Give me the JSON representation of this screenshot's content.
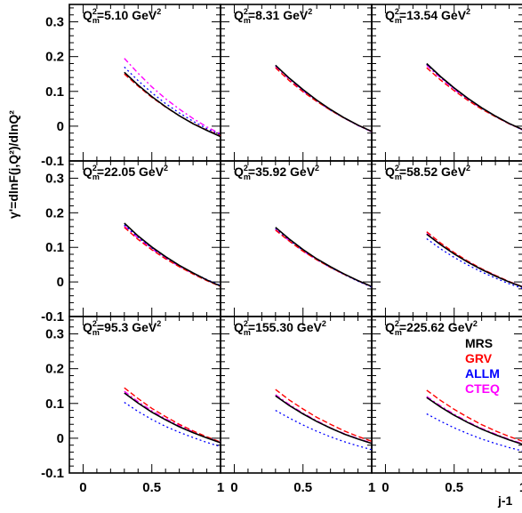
{
  "chart_data": {
    "type": "line",
    "layout": {
      "rows": 3,
      "cols": 3
    },
    "ylabel": "γ'=dlnF(j,Q²)/dlnQ²",
    "xlabel": "j-1",
    "xlim": [
      -0.1,
      1.0
    ],
    "ylim": [
      -0.1,
      0.35
    ],
    "xticks": [
      "0",
      "0.5",
      "1"
    ],
    "yticks": [
      "-0.1",
      "0",
      "0.1",
      "0.2",
      "0.3"
    ],
    "legend": {
      "position": "inside bottom-right panel, top-right",
      "entries": [
        {
          "name": "MRS",
          "color": "#000000"
        },
        {
          "name": "GRV",
          "color": "#ff0000"
        },
        {
          "name": "ALLM",
          "color": "#0000ff"
        },
        {
          "name": "CTEQ",
          "color": "#ff00ff"
        }
      ]
    },
    "x": [
      0.3,
      0.4,
      0.5,
      0.6,
      0.7,
      0.8,
      0.9,
      1.0
    ],
    "panels": [
      {
        "q2": "5.10",
        "unit": "GeV",
        "series": [
          {
            "name": "MRS",
            "values": [
              0.155,
              0.118,
              0.085,
              0.056,
              0.03,
              0.007,
              -0.012,
              -0.03
            ]
          },
          {
            "name": "GRV",
            "values": [
              0.15,
              0.115,
              0.083,
              0.055,
              0.03,
              0.008,
              -0.011,
              -0.028
            ]
          },
          {
            "name": "ALLM",
            "values": [
              0.17,
              0.131,
              0.096,
              0.065,
              0.038,
              0.014,
              -0.007,
              -0.025
            ]
          },
          {
            "name": "CTEQ",
            "values": [
              0.195,
              0.152,
              0.113,
              0.079,
              0.049,
              0.022,
              -0.002,
              -0.022
            ]
          }
        ]
      },
      {
        "q2": "8.31",
        "unit": "GeV",
        "series": [
          {
            "name": "MRS",
            "values": [
              0.175,
              0.138,
              0.105,
              0.075,
              0.048,
              0.024,
              0.003,
              -0.015
            ]
          },
          {
            "name": "GRV",
            "values": [
              0.168,
              0.131,
              0.099,
              0.071,
              0.046,
              0.023,
              0.003,
              -0.015
            ]
          },
          {
            "name": "ALLM",
            "values": [
              0.175,
              0.137,
              0.103,
              0.073,
              0.046,
              0.023,
              0.002,
              -0.016
            ]
          },
          {
            "name": "CTEQ",
            "values": [
              0.172,
              0.135,
              0.102,
              0.072,
              0.046,
              0.023,
              0.002,
              -0.016
            ]
          }
        ]
      },
      {
        "q2": "13.54",
        "unit": "GeV",
        "series": [
          {
            "name": "MRS",
            "values": [
              0.18,
              0.143,
              0.11,
              0.08,
              0.053,
              0.029,
              0.008,
              -0.01
            ]
          },
          {
            "name": "GRV",
            "values": [
              0.168,
              0.133,
              0.102,
              0.074,
              0.049,
              0.027,
              0.007,
              -0.01
            ]
          },
          {
            "name": "ALLM",
            "values": [
              0.178,
              0.141,
              0.108,
              0.078,
              0.051,
              0.028,
              0.007,
              -0.011
            ]
          },
          {
            "name": "CTEQ",
            "values": [
              0.175,
              0.139,
              0.106,
              0.077,
              0.051,
              0.028,
              0.007,
              -0.011
            ]
          }
        ]
      },
      {
        "q2": "22.05",
        "unit": "GeV",
        "series": [
          {
            "name": "MRS",
            "values": [
              0.17,
              0.133,
              0.101,
              0.073,
              0.048,
              0.026,
              0.006,
              -0.012
            ]
          },
          {
            "name": "GRV",
            "values": [
              0.158,
              0.123,
              0.093,
              0.067,
              0.044,
              0.023,
              0.004,
              -0.013
            ]
          },
          {
            "name": "ALLM",
            "values": [
              0.165,
              0.129,
              0.098,
              0.071,
              0.047,
              0.026,
              0.007,
              -0.01
            ]
          },
          {
            "name": "CTEQ",
            "values": [
              0.162,
              0.127,
              0.096,
              0.069,
              0.045,
              0.024,
              0.005,
              -0.012
            ]
          }
        ]
      },
      {
        "q2": "35.92",
        "unit": "GeV",
        "series": [
          {
            "name": "MRS",
            "values": [
              0.158,
              0.124,
              0.094,
              0.067,
              0.044,
              0.023,
              0.004,
              -0.013
            ]
          },
          {
            "name": "GRV",
            "values": [
              0.15,
              0.118,
              0.089,
              0.064,
              0.042,
              0.022,
              0.004,
              -0.013
            ]
          },
          {
            "name": "ALLM",
            "values": [
              0.155,
              0.121,
              0.091,
              0.065,
              0.042,
              0.021,
              0.002,
              -0.015
            ]
          },
          {
            "name": "CTEQ",
            "values": [
              0.152,
              0.119,
              0.09,
              0.064,
              0.042,
              0.022,
              0.003,
              -0.014
            ]
          }
        ]
      },
      {
        "q2": "58.52",
        "unit": "GeV",
        "series": [
          {
            "name": "MRS",
            "values": [
              0.138,
              0.108,
              0.081,
              0.057,
              0.036,
              0.017,
              0.0,
              -0.015
            ]
          },
          {
            "name": "GRV",
            "values": [
              0.145,
              0.113,
              0.085,
              0.06,
              0.038,
              0.019,
              0.001,
              -0.014
            ]
          },
          {
            "name": "ALLM",
            "values": [
              0.125,
              0.096,
              0.071,
              0.049,
              0.029,
              0.011,
              -0.005,
              -0.019
            ]
          },
          {
            "name": "CTEQ",
            "values": [
              0.14,
              0.109,
              0.082,
              0.058,
              0.037,
              0.018,
              0.001,
              -0.014
            ]
          }
        ]
      },
      {
        "q2": "95.3",
        "unit": "GeV",
        "series": [
          {
            "name": "MRS",
            "values": [
              0.13,
              0.101,
              0.075,
              0.053,
              0.033,
              0.016,
              0.001,
              -0.013
            ]
          },
          {
            "name": "GRV",
            "values": [
              0.145,
              0.114,
              0.086,
              0.062,
              0.04,
              0.021,
              0.004,
              -0.011
            ]
          },
          {
            "name": "ALLM",
            "values": [
              0.103,
              0.077,
              0.054,
              0.034,
              0.017,
              0.002,
              -0.012,
              -0.024
            ]
          },
          {
            "name": "CTEQ",
            "values": [
              0.135,
              0.105,
              0.079,
              0.056,
              0.036,
              0.018,
              0.002,
              -0.012
            ]
          }
        ]
      },
      {
        "q2": "155.30",
        "unit": "GeV",
        "series": [
          {
            "name": "MRS",
            "values": [
              0.122,
              0.094,
              0.07,
              0.048,
              0.029,
              0.012,
              -0.002,
              -0.015
            ]
          },
          {
            "name": "GRV",
            "values": [
              0.14,
              0.11,
              0.084,
              0.06,
              0.04,
              0.021,
              0.005,
              -0.009
            ]
          },
          {
            "name": "ALLM",
            "values": [
              0.08,
              0.058,
              0.038,
              0.02,
              0.004,
              -0.01,
              -0.022,
              -0.033
            ]
          },
          {
            "name": "CTEQ",
            "values": [
              0.125,
              0.097,
              0.072,
              0.05,
              0.03,
              0.013,
              -0.001,
              -0.014
            ]
          }
        ]
      },
      {
        "q2": "225.62",
        "unit": "GeV",
        "series": [
          {
            "name": "MRS",
            "values": [
              0.117,
              0.09,
              0.066,
              0.045,
              0.026,
              0.01,
              -0.005,
              -0.018
            ]
          },
          {
            "name": "GRV",
            "values": [
              0.138,
              0.109,
              0.083,
              0.06,
              0.039,
              0.021,
              0.005,
              -0.009
            ]
          },
          {
            "name": "ALLM",
            "values": [
              0.07,
              0.049,
              0.03,
              0.013,
              -0.002,
              -0.015,
              -0.027,
              -0.037
            ]
          },
          {
            "name": "CTEQ",
            "values": [
              0.12,
              0.093,
              0.069,
              0.047,
              0.028,
              0.012,
              -0.003,
              -0.016
            ]
          }
        ]
      }
    ]
  }
}
